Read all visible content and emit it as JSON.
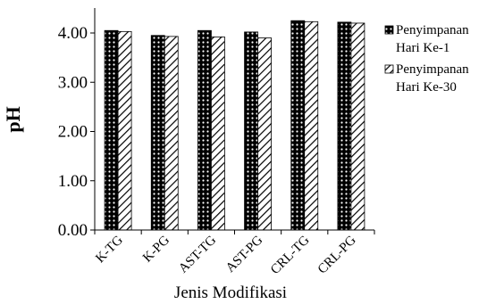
{
  "chart_data": {
    "type": "bar",
    "categories": [
      "K-TG",
      "K-PG",
      "AST-TG",
      "AST-PG",
      "CRL-TG",
      "CRL-PG"
    ],
    "series": [
      {
        "name": "Penyimpanan Hari Ke-1",
        "pattern": "dots-on-black",
        "values": [
          4.05,
          3.95,
          4.05,
          4.02,
          4.25,
          4.22
        ]
      },
      {
        "name": "Penyimpanan Hari Ke-30",
        "pattern": "diagonal-hatch",
        "values": [
          4.03,
          3.93,
          3.92,
          3.9,
          4.23,
          4.2
        ]
      }
    ],
    "title": "",
    "xlabel": "Jenis Modifikasi",
    "ylabel": "pH",
    "ylim": [
      0,
      4.5
    ],
    "yticks": [
      "0.00",
      "1.00",
      "2.00",
      "3.00",
      "4.00"
    ],
    "grid": false,
    "legend_position": "right"
  },
  "legend": {
    "series1_line1": "Penyimpanan",
    "series1_line2": "Hari Ke-1",
    "series2_line1": "Penyimpanan",
    "series2_line2": "Hari Ke-30"
  }
}
